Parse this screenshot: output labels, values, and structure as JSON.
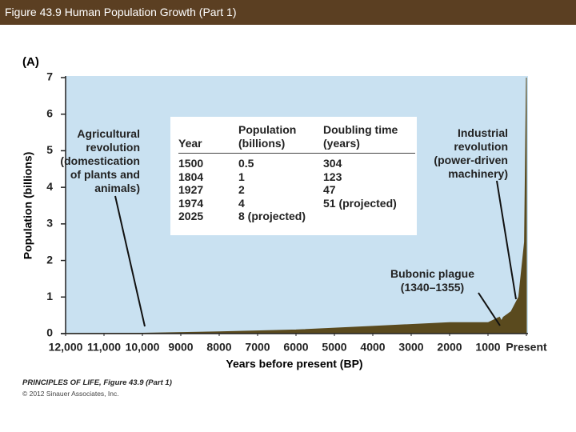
{
  "header": {
    "title": "Figure 43.9 Human Population Growth (Part 1)"
  },
  "chart_data": {
    "type": "area",
    "panel_label": "(A)",
    "x_label": "Years before present (BP)",
    "y_label": "Population (billions)",
    "x": [
      12000,
      10000,
      8000,
      6000,
      4000,
      2000,
      1000,
      700,
      650,
      600,
      400,
      200,
      100,
      50,
      0
    ],
    "values": [
      0.005,
      0.01,
      0.05,
      0.1,
      0.2,
      0.3,
      0.3,
      0.45,
      0.35,
      0.45,
      0.6,
      1,
      2,
      2.5,
      7
    ],
    "color": "#5a4a1e",
    "background": "#c9e1f1",
    "xlim": [
      12000,
      0
    ],
    "ylim": [
      0,
      7
    ],
    "xticks": [
      {
        "value": 12000,
        "label": "12,000"
      },
      {
        "value": 11000,
        "label": "11,000"
      },
      {
        "value": 10000,
        "label": "10,000"
      },
      9000,
      8000,
      7000,
      6000,
      5000,
      4000,
      3000,
      2000,
      1000,
      {
        "value": 0,
        "label": "Present"
      }
    ],
    "yticks": [
      0,
      1,
      2,
      3,
      4,
      5,
      6,
      7
    ],
    "annotations": {
      "agricultural": "Agricultural revolution (domestication of plants and animals)",
      "industrial": "Industrial revolution (power-driven machinery)",
      "plague": "Bubonic plague (1340–1355)"
    },
    "table": {
      "columns": [
        "Year",
        "Population (billions)",
        "Doubling time (years)"
      ],
      "rows": [
        [
          "1500",
          "0.5",
          "304"
        ],
        [
          "1804",
          "1",
          "123"
        ],
        [
          "1927",
          "2",
          "47"
        ],
        [
          "1974",
          "4",
          "51 (projected)"
        ],
        [
          "2025",
          "8 (projected)",
          ""
        ]
      ]
    }
  },
  "footer": {
    "credit": "PRINCIPLES OF LIFE, Figure 43.9 (Part 1)",
    "copyright": "© 2012 Sinauer Associates, Inc."
  }
}
